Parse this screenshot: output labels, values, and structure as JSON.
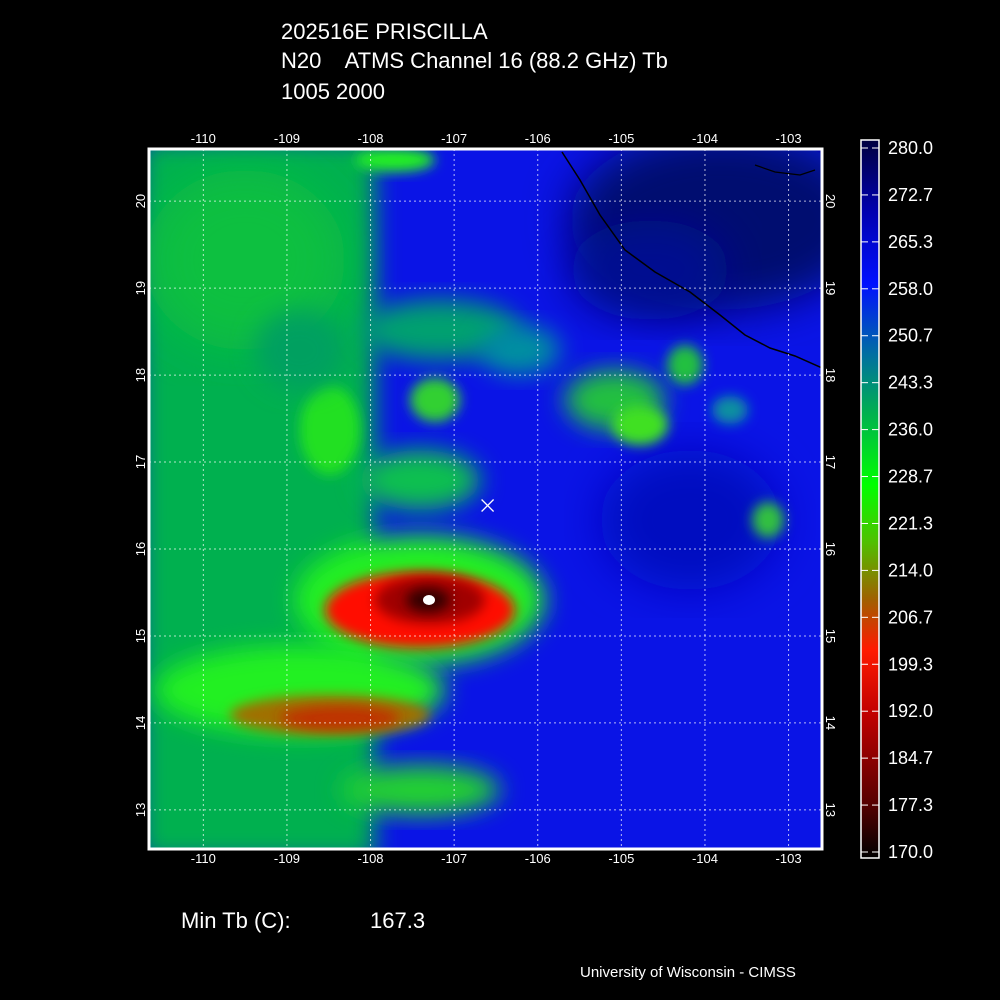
{
  "header": {
    "line1": "202516E PRISCILLA",
    "line2": "N20    ATMS Channel 16 (88.2 GHz) Tb",
    "line3": "1005 2000"
  },
  "map": {
    "lon_ticks": [
      "-110",
      "-109",
      "-108",
      "-107",
      "-106",
      "-105",
      "-104",
      "-103"
    ],
    "lat_ticks": [
      "20",
      "19",
      "18",
      "17",
      "16",
      "15",
      "14",
      "13"
    ],
    "lon_range": [
      -110.65,
      -102.6
    ],
    "lat_range": [
      12.55,
      20.6
    ],
    "storm_center_marker": {
      "lon": -106.6,
      "lat": 16.5,
      "icon": "x-marker-icon"
    },
    "colors": {
      "low": "#000000",
      "red": "#ff0000",
      "green": "#00ff00",
      "blue": "#0000ff",
      "high": "#000040"
    }
  },
  "colorbar": {
    "labels": [
      "280.0",
      "272.7",
      "265.3",
      "258.0",
      "250.7",
      "243.3",
      "236.0",
      "228.7",
      "221.3",
      "214.0",
      "206.7",
      "199.3",
      "192.0",
      "184.7",
      "177.3",
      "170.0"
    ]
  },
  "footer": {
    "min_label": "Min Tb (C):",
    "min_value": "167.3",
    "credit": "University of Wisconsin - CIMSS"
  }
}
